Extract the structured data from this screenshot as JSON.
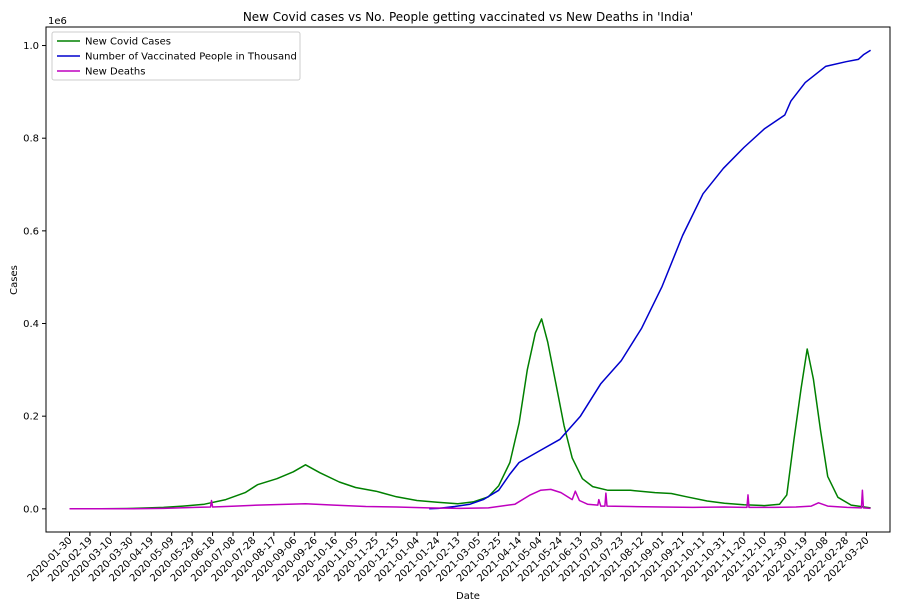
{
  "chart_data": {
    "type": "line",
    "title": "New Covid cases vs No. People getting vaccinated vs New Deaths in 'India'",
    "xlabel": "Date",
    "ylabel": "Cases",
    "y_offset_label": "1e6",
    "ylim": [
      -0.05,
      1.04
    ],
    "xlim": [
      "2020-01-07",
      "2022-04-12"
    ],
    "x_ticks": [
      "2020-01-30",
      "2020-02-19",
      "2020-03-10",
      "2020-03-30",
      "2020-04-19",
      "2020-05-09",
      "2020-05-29",
      "2020-06-18",
      "2020-07-08",
      "2020-07-28",
      "2020-08-17",
      "2020-09-06",
      "2020-09-26",
      "2020-10-16",
      "2020-11-05",
      "2020-11-25",
      "2020-12-15",
      "2021-01-04",
      "2021-01-24",
      "2021-02-13",
      "2021-03-05",
      "2021-03-25",
      "2021-04-14",
      "2021-05-04",
      "2021-05-24",
      "2021-06-13",
      "2021-07-03",
      "2021-07-23",
      "2021-08-12",
      "2021-09-01",
      "2021-09-21",
      "2021-10-11",
      "2021-10-31",
      "2021-11-20",
      "2021-12-10",
      "2021-12-30",
      "2022-01-19",
      "2022-02-08",
      "2022-02-28",
      "2022-03-20"
    ],
    "y_ticks": [
      "0.0",
      "0.2",
      "0.4",
      "0.6",
      "0.8",
      "1.0"
    ],
    "y_tick_values": [
      0,
      0.2,
      0.4,
      0.6,
      0.8,
      1.0
    ],
    "grid": false,
    "legend_position": "top-left",
    "series": [
      {
        "name": "New Covid Cases",
        "color": "#008000",
        "points": [
          [
            "2020-01-30",
            0
          ],
          [
            "2020-03-01",
            0
          ],
          [
            "2020-04-01",
            0.001
          ],
          [
            "2020-05-01",
            0.003
          ],
          [
            "2020-05-20",
            0.006
          ],
          [
            "2020-06-10",
            0.01
          ],
          [
            "2020-07-01",
            0.02
          ],
          [
            "2020-07-20",
            0.035
          ],
          [
            "2020-08-01",
            0.052
          ],
          [
            "2020-08-20",
            0.065
          ],
          [
            "2020-09-05",
            0.08
          ],
          [
            "2020-09-17",
            0.095
          ],
          [
            "2020-10-01",
            0.078
          ],
          [
            "2020-10-20",
            0.058
          ],
          [
            "2020-11-05",
            0.046
          ],
          [
            "2020-11-25",
            0.038
          ],
          [
            "2020-12-15",
            0.026
          ],
          [
            "2021-01-04",
            0.018
          ],
          [
            "2021-01-24",
            0.014
          ],
          [
            "2021-02-13",
            0.011
          ],
          [
            "2021-02-28",
            0.015
          ],
          [
            "2021-03-15",
            0.026
          ],
          [
            "2021-03-25",
            0.05
          ],
          [
            "2021-04-05",
            0.1
          ],
          [
            "2021-04-14",
            0.185
          ],
          [
            "2021-04-22",
            0.3
          ],
          [
            "2021-04-30",
            0.38
          ],
          [
            "2021-05-06",
            0.41
          ],
          [
            "2021-05-12",
            0.36
          ],
          [
            "2021-05-20",
            0.27
          ],
          [
            "2021-05-28",
            0.18
          ],
          [
            "2021-06-05",
            0.11
          ],
          [
            "2021-06-15",
            0.065
          ],
          [
            "2021-06-25",
            0.048
          ],
          [
            "2021-07-10",
            0.04
          ],
          [
            "2021-08-01",
            0.04
          ],
          [
            "2021-08-25",
            0.035
          ],
          [
            "2021-09-10",
            0.033
          ],
          [
            "2021-09-25",
            0.026
          ],
          [
            "2021-10-15",
            0.017
          ],
          [
            "2021-11-01",
            0.012
          ],
          [
            "2021-11-20",
            0.009
          ],
          [
            "2021-12-10",
            0.007
          ],
          [
            "2021-12-25",
            0.01
          ],
          [
            "2022-01-01",
            0.03
          ],
          [
            "2022-01-08",
            0.15
          ],
          [
            "2022-01-15",
            0.26
          ],
          [
            "2022-01-21",
            0.345
          ],
          [
            "2022-01-27",
            0.28
          ],
          [
            "2022-02-03",
            0.17
          ],
          [
            "2022-02-10",
            0.07
          ],
          [
            "2022-02-20",
            0.025
          ],
          [
            "2022-03-05",
            0.008
          ],
          [
            "2022-03-24",
            0.002
          ]
        ]
      },
      {
        "name": "Number of Vaccinated People in Thousand",
        "color": "#0000cd",
        "points": [
          [
            "2021-01-16",
            0
          ],
          [
            "2021-01-25",
            0.001
          ],
          [
            "2021-02-10",
            0.005
          ],
          [
            "2021-02-25",
            0.01
          ],
          [
            "2021-03-10",
            0.02
          ],
          [
            "2021-03-25",
            0.04
          ],
          [
            "2021-04-05",
            0.075
          ],
          [
            "2021-04-14",
            0.1
          ],
          [
            "2021-05-04",
            0.125
          ],
          [
            "2021-05-24",
            0.15
          ],
          [
            "2021-06-13",
            0.2
          ],
          [
            "2021-07-03",
            0.27
          ],
          [
            "2021-07-23",
            0.32
          ],
          [
            "2021-08-12",
            0.39
          ],
          [
            "2021-09-01",
            0.48
          ],
          [
            "2021-09-21",
            0.59
          ],
          [
            "2021-10-11",
            0.68
          ],
          [
            "2021-10-31",
            0.735
          ],
          [
            "2021-11-20",
            0.78
          ],
          [
            "2021-12-10",
            0.82
          ],
          [
            "2021-12-30",
            0.85
          ],
          [
            "2022-01-05",
            0.88
          ],
          [
            "2022-01-19",
            0.92
          ],
          [
            "2022-02-08",
            0.955
          ],
          [
            "2022-02-28",
            0.965
          ],
          [
            "2022-03-12",
            0.97
          ],
          [
            "2022-03-17",
            0.98
          ],
          [
            "2022-03-24",
            0.99
          ]
        ]
      },
      {
        "name": "New Deaths",
        "color": "#bf00bf",
        "points": [
          [
            "2020-01-30",
            0
          ],
          [
            "2020-04-01",
            0
          ],
          [
            "2020-05-01",
            0.001
          ],
          [
            "2020-06-01",
            0.003
          ],
          [
            "2020-06-16",
            0.004
          ],
          [
            "2020-06-17",
            0.018
          ],
          [
            "2020-06-18",
            0.004
          ],
          [
            "2020-07-10",
            0.006
          ],
          [
            "2020-08-01",
            0.008
          ],
          [
            "2020-09-17",
            0.011
          ],
          [
            "2020-10-15",
            0.008
          ],
          [
            "2020-11-15",
            0.005
          ],
          [
            "2020-12-15",
            0.004
          ],
          [
            "2021-01-15",
            0.002
          ],
          [
            "2021-02-15",
            0.001
          ],
          [
            "2021-03-15",
            0.002
          ],
          [
            "2021-04-10",
            0.01
          ],
          [
            "2021-04-25",
            0.03
          ],
          [
            "2021-05-05",
            0.04
          ],
          [
            "2021-05-15",
            0.042
          ],
          [
            "2021-05-25",
            0.035
          ],
          [
            "2021-06-05",
            0.02
          ],
          [
            "2021-06-08",
            0.038
          ],
          [
            "2021-06-12",
            0.018
          ],
          [
            "2021-06-20",
            0.01
          ],
          [
            "2021-06-30",
            0.008
          ],
          [
            "2021-07-01",
            0.02
          ],
          [
            "2021-07-03",
            0.006
          ],
          [
            "2021-07-07",
            0.006
          ],
          [
            "2021-07-08",
            0.034
          ],
          [
            "2021-07-09",
            0.006
          ],
          [
            "2021-08-01",
            0.005
          ],
          [
            "2021-09-01",
            0.004
          ],
          [
            "2021-10-01",
            0.003
          ],
          [
            "2021-11-01",
            0.004
          ],
          [
            "2021-11-20",
            0.003
          ],
          [
            "2021-11-23",
            0.003
          ],
          [
            "2021-11-24",
            0.03
          ],
          [
            "2021-11-25",
            0.003
          ],
          [
            "2021-12-20",
            0.003
          ],
          [
            "2022-01-10",
            0.004
          ],
          [
            "2022-01-25",
            0.006
          ],
          [
            "2022-02-01",
            0.013
          ],
          [
            "2022-02-10",
            0.006
          ],
          [
            "2022-03-01",
            0.003
          ],
          [
            "2022-03-15",
            0.002
          ],
          [
            "2022-03-16",
            0.04
          ],
          [
            "2022-03-17",
            0.002
          ],
          [
            "2022-03-24",
            0.001
          ]
        ]
      }
    ]
  }
}
